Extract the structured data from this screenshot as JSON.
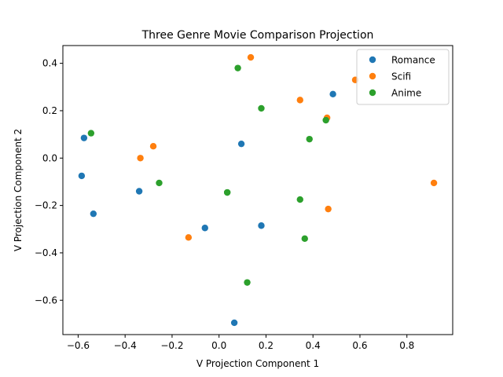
{
  "chart_data": {
    "type": "scatter",
    "title": "Three Genre Movie Comparison Projection",
    "xlabel": "V Projection Component 1",
    "ylabel": "V Projection Component 2",
    "xlim": [
      -0.665,
      0.995
    ],
    "ylim": [
      -0.745,
      0.475
    ],
    "xticks": [
      -0.6,
      -0.4,
      -0.2,
      0.0,
      0.2,
      0.4,
      0.6,
      0.8
    ],
    "xtick_labels": [
      "−0.6",
      "−0.4",
      "−0.2",
      "0.0",
      "0.2",
      "0.4",
      "0.6",
      "0.8"
    ],
    "yticks": [
      -0.6,
      -0.4,
      -0.2,
      0.0,
      0.2,
      0.4
    ],
    "ytick_labels": [
      "−0.6",
      "−0.4",
      "−0.2",
      "0.0",
      "0.2",
      "0.4"
    ],
    "grid": false,
    "legend_position": "upper-right",
    "series": [
      {
        "name": "Romance",
        "color": "#1f77b4",
        "points": [
          {
            "x": -0.575,
            "y": 0.085
          },
          {
            "x": -0.585,
            "y": -0.075
          },
          {
            "x": -0.34,
            "y": -0.14
          },
          {
            "x": -0.535,
            "y": -0.235
          },
          {
            "x": -0.06,
            "y": -0.295
          },
          {
            "x": 0.095,
            "y": 0.06
          },
          {
            "x": 0.18,
            "y": -0.285
          },
          {
            "x": 0.065,
            "y": -0.695
          },
          {
            "x": 0.485,
            "y": 0.27
          }
        ]
      },
      {
        "name": "Scifi",
        "color": "#ff7f0e",
        "points": [
          {
            "x": -0.28,
            "y": 0.05
          },
          {
            "x": -0.335,
            "y": 0.0
          },
          {
            "x": -0.13,
            "y": -0.335
          },
          {
            "x": 0.135,
            "y": 0.425
          },
          {
            "x": 0.345,
            "y": 0.245
          },
          {
            "x": 0.46,
            "y": 0.17
          },
          {
            "x": 0.465,
            "y": -0.215
          },
          {
            "x": 0.58,
            "y": 0.33
          },
          {
            "x": 0.915,
            "y": -0.105
          }
        ]
      },
      {
        "name": "Anime",
        "color": "#2ca02c",
        "points": [
          {
            "x": -0.545,
            "y": 0.105
          },
          {
            "x": -0.255,
            "y": -0.105
          },
          {
            "x": 0.035,
            "y": -0.145
          },
          {
            "x": 0.035,
            "y": -0.145
          },
          {
            "x": 0.08,
            "y": 0.38
          },
          {
            "x": 0.18,
            "y": 0.21
          },
          {
            "x": 0.385,
            "y": 0.08
          },
          {
            "x": 0.455,
            "y": 0.16
          },
          {
            "x": 0.345,
            "y": -0.175
          },
          {
            "x": 0.365,
            "y": -0.34
          },
          {
            "x": 0.12,
            "y": -0.525
          }
        ]
      }
    ]
  }
}
